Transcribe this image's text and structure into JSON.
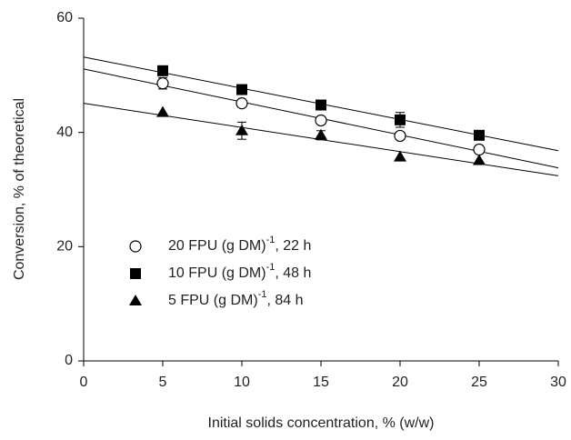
{
  "chart_data": {
    "type": "scatter",
    "x_label": "Initial solids concentration, % (w/w)",
    "y_label": "Conversion, % of theoretical",
    "xlim": [
      0,
      30
    ],
    "xticks": [
      0,
      5,
      10,
      15,
      20,
      25,
      30
    ],
    "ylim": [
      0,
      60
    ],
    "yticks": [
      0,
      20,
      40,
      60
    ],
    "series": [
      {
        "name": [
          "20 FPU (g DM)",
          "-1",
          ", 22 h"
        ],
        "marker": "circle-open",
        "color": "#000000",
        "x": [
          5,
          10,
          15,
          20,
          25
        ],
        "values": [
          48.6,
          45.1,
          42.1,
          39.4,
          37.0
        ],
        "errors": [
          1.0,
          null,
          null,
          null,
          0.7
        ],
        "line_x": [
          0,
          30
        ],
        "line_y": [
          51.1,
          33.8
        ]
      },
      {
        "name": [
          "10 FPU (g DM)",
          "-1",
          ", 48 h"
        ],
        "marker": "square",
        "color": "#000000",
        "x": [
          5,
          10,
          15,
          20,
          25
        ],
        "values": [
          50.8,
          47.5,
          44.8,
          42.2,
          39.5
        ],
        "errors": [
          null,
          null,
          null,
          1.3,
          null
        ],
        "line_x": [
          0,
          30
        ],
        "line_y": [
          53.2,
          36.8
        ]
      },
      {
        "name": [
          "5 FPU (g DM)",
          "-1",
          ", 84 h"
        ],
        "marker": "triangle",
        "color": "#000000",
        "x": [
          5,
          10,
          15,
          20,
          25
        ],
        "values": [
          43.5,
          40.3,
          39.5,
          35.7,
          35.1
        ],
        "errors": [
          null,
          1.5,
          0.8,
          null,
          null
        ],
        "line_x": [
          0,
          30
        ],
        "line_y": [
          45.1,
          32.4
        ]
      }
    ]
  }
}
